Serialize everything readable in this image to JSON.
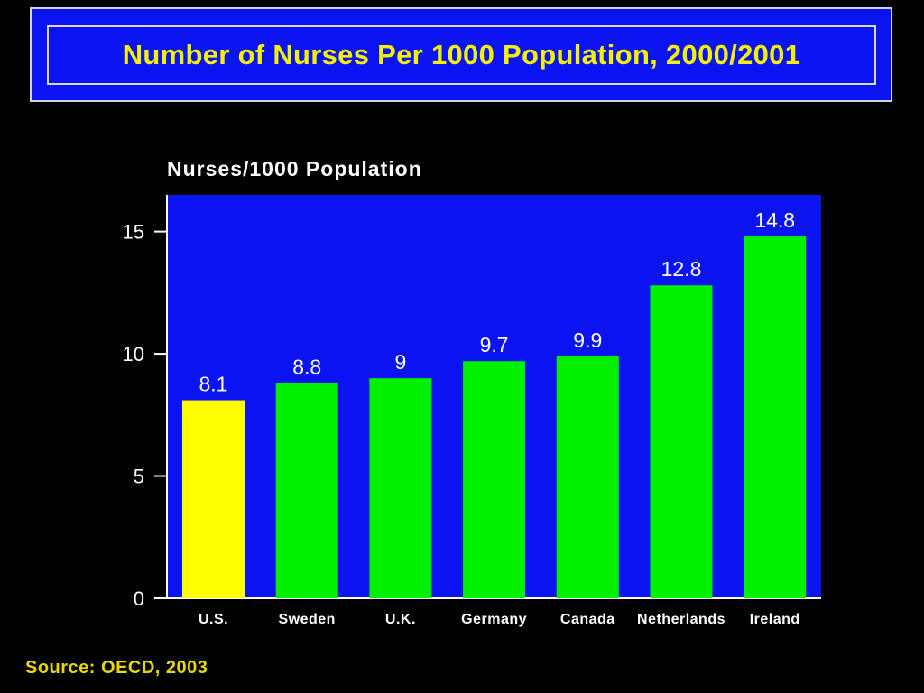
{
  "title": "Number of Nurses Per 1000 Population, 2000/2001",
  "source": "Source: OECD, 2003",
  "colors": {
    "background": "#000000",
    "title_box": "#0a14f0",
    "title_text": "#f5f000",
    "plot_area": "#0a14f0",
    "highlight_bar": "#ffff00",
    "bar": "#00f000",
    "text": "#ffffff"
  },
  "chart_data": {
    "type": "bar",
    "ylabel": "Nurses/1000 Population",
    "categories": [
      "U.S.",
      "Sweden",
      "U.K.",
      "Germany",
      "Canada",
      "Netherlands",
      "Ireland"
    ],
    "values": [
      8.1,
      8.8,
      9,
      9.7,
      9.9,
      12.8,
      14.8
    ],
    "data_labels": [
      "8.1",
      "8.8",
      "9",
      "9.7",
      "9.9",
      "12.8",
      "14.8"
    ],
    "highlight": [
      "U.S."
    ],
    "ylim": [
      0,
      16.5
    ],
    "yticks": [
      0,
      5,
      10,
      15
    ],
    "grid": false,
    "legend": "none"
  }
}
